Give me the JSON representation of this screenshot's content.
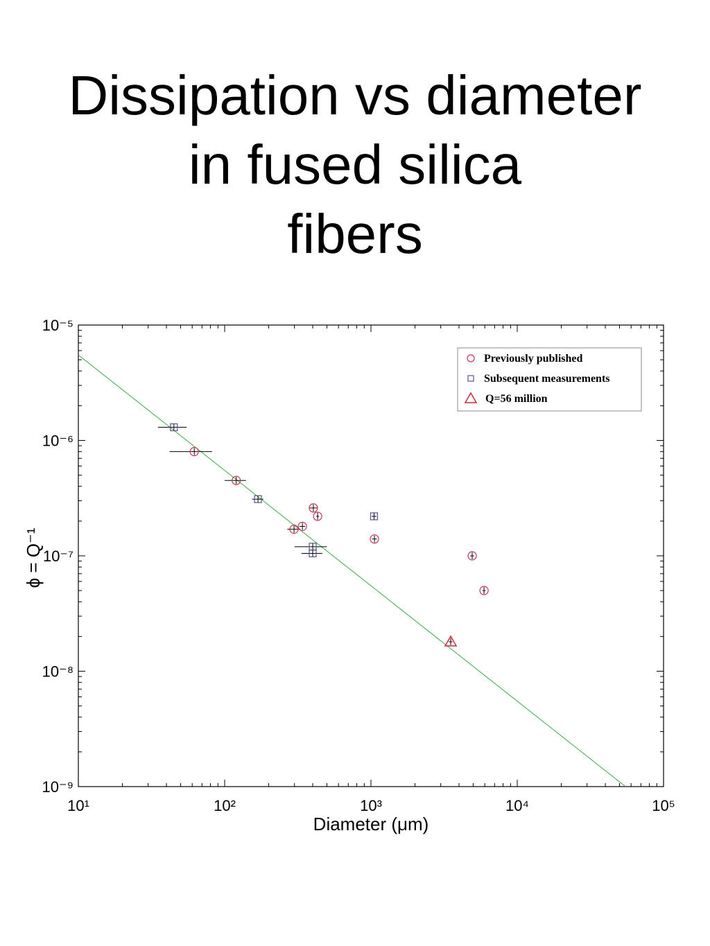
{
  "chart_data": {
    "type": "scatter",
    "title": "Dissipation vs diameter in fused silica fibers",
    "x_label": "Diameter (μm)",
    "y_label": "ϕ = Q⁻¹",
    "log_x": true,
    "log_y": true,
    "legend": "top-right",
    "xlim": [
      10,
      100000
    ],
    "ylim": [
      1e-09,
      1e-05
    ],
    "xticks": [
      {
        "value": 10,
        "label": "10¹"
      },
      {
        "value": 100,
        "label": "10²"
      },
      {
        "value": 1000,
        "label": "10³"
      },
      {
        "value": 10000,
        "label": "10⁴"
      },
      {
        "value": 100000,
        "label": "10⁵"
      }
    ],
    "yticks": [
      {
        "value": 1e-09,
        "label": "10⁻⁹"
      },
      {
        "value": 1e-08,
        "label": "10⁻⁸"
      },
      {
        "value": 1e-07,
        "label": "10⁻⁷"
      },
      {
        "value": 1e-06,
        "label": "10⁻⁶"
      },
      {
        "value": 1e-05,
        "label": "10⁻⁵"
      }
    ],
    "series": [
      {
        "name": "Previously published",
        "color": "#c8304f",
        "marker": "circle",
        "x": [
          62,
          120,
          298,
          340,
          404,
          432,
          1057,
          4920,
          5930
        ],
        "values": [
          8e-07,
          4.5e-07,
          1.7e-07,
          1.8e-07,
          2.6e-07,
          2.2e-07,
          1.4e-07,
          1e-07,
          5e-08
        ],
        "xerr": [
          20,
          20,
          30,
          15,
          25,
          10,
          40,
          150,
          150
        ]
      },
      {
        "name": "Subsequent measurements",
        "color": "#55558f",
        "marker": "square",
        "x": [
          45,
          169,
          400,
          400,
          1050
        ],
        "values": [
          1.3e-06,
          3.1e-07,
          1.2e-07,
          1.05e-07,
          2.2e-07
        ],
        "xerr": [
          10,
          15,
          100,
          65,
          40
        ]
      },
      {
        "name": "Q=56 million",
        "color": "#d0283a",
        "marker": "triangle",
        "x": [
          3510
        ],
        "values": [
          1.8e-08
        ],
        "xerr": [
          100
        ]
      }
    ],
    "fit_line": {
      "color": "#3aa648",
      "x": [
        10,
        55000
      ],
      "values": [
        5.5e-06,
        1e-09
      ]
    }
  }
}
